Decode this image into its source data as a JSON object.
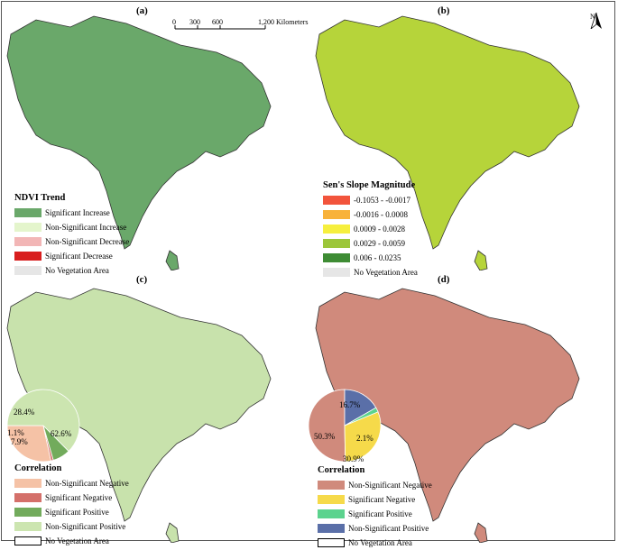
{
  "panels": {
    "a": {
      "label": "(a)",
      "legend_title": "NDVI Trend",
      "items": [
        {
          "label": "Significant Increase",
          "color": "#6aa86a"
        },
        {
          "label": "Non-Significant Increase",
          "color": "#e4f5cc"
        },
        {
          "label": "Non-Significant Decrease",
          "color": "#f2b6b6"
        },
        {
          "label": "Significant Decrease",
          "color": "#d81e1e"
        },
        {
          "label": "No Vegetation Area",
          "color": "#e6e6e6"
        }
      ],
      "map_fill": "#6aa86a"
    },
    "b": {
      "label": "(b)",
      "legend_title": "Sen's Slope Magnitude",
      "items": [
        {
          "label": "-0.1053 - -0.0017",
          "color": "#f2543c"
        },
        {
          "label": "-0.0016 - 0.0008",
          "color": "#f8b23a"
        },
        {
          "label": "0.0009 - 0.0028",
          "color": "#f6ef3e"
        },
        {
          "label": "0.0029 - 0.0059",
          "color": "#9cc63a"
        },
        {
          "label": "0.006 - 0.0235",
          "color": "#3e8c34"
        },
        {
          "label": "No Vegetation Area",
          "color": "#e6e6e6"
        }
      ],
      "map_fill": "#b6d43a"
    },
    "c": {
      "label": "(c)",
      "legend_title": "Correlation",
      "items": [
        {
          "label": "Non-Significant Negative",
          "color": "#f5c2a6"
        },
        {
          "label": "Significant Negative",
          "color": "#d4706a"
        },
        {
          "label": "Significant Positive",
          "color": "#72ab5c"
        },
        {
          "label": "Non-Significant Positive",
          "color": "#cce5b0"
        },
        {
          "label": "No Vegetation Area",
          "color": "#ffffff"
        }
      ],
      "map_fill": "#c8e2ac",
      "pie": [
        {
          "value": 28.4,
          "label": "28.4%",
          "color": "#f5c2a6"
        },
        {
          "value": 1.1,
          "label": "1.1%",
          "color": "#d4706a"
        },
        {
          "value": 7.9,
          "label": "7.9%",
          "color": "#72ab5c"
        },
        {
          "value": 62.6,
          "label": "62.6%",
          "color": "#cce5b0"
        }
      ]
    },
    "d": {
      "label": "(d)",
      "legend_title": "Correlation",
      "items": [
        {
          "label": "Non-Significant Negative",
          "color": "#d08a7c"
        },
        {
          "label": "Significant Negative",
          "color": "#f6da4a"
        },
        {
          "label": "Significant Positive",
          "color": "#5cd38e"
        },
        {
          "label": "Non-Significant Positive",
          "color": "#5a6fa8"
        },
        {
          "label": "No Vegetation Area",
          "color": "#ffffff"
        }
      ],
      "map_fill": "#d08a7c",
      "pie": [
        {
          "value": 50.3,
          "label": "50.3%",
          "color": "#d08a7c"
        },
        {
          "value": 30.9,
          "label": "30.9%",
          "color": "#f6da4a"
        },
        {
          "value": 2.1,
          "label": "2.1%",
          "color": "#5cd38e"
        },
        {
          "value": 16.7,
          "label": "16.7%",
          "color": "#5a6fa8"
        }
      ]
    }
  },
  "scale_bar": {
    "ticks": [
      "0",
      "300",
      "600",
      "1,200 Kilometers"
    ]
  },
  "north_arrow": {
    "label": "N"
  }
}
